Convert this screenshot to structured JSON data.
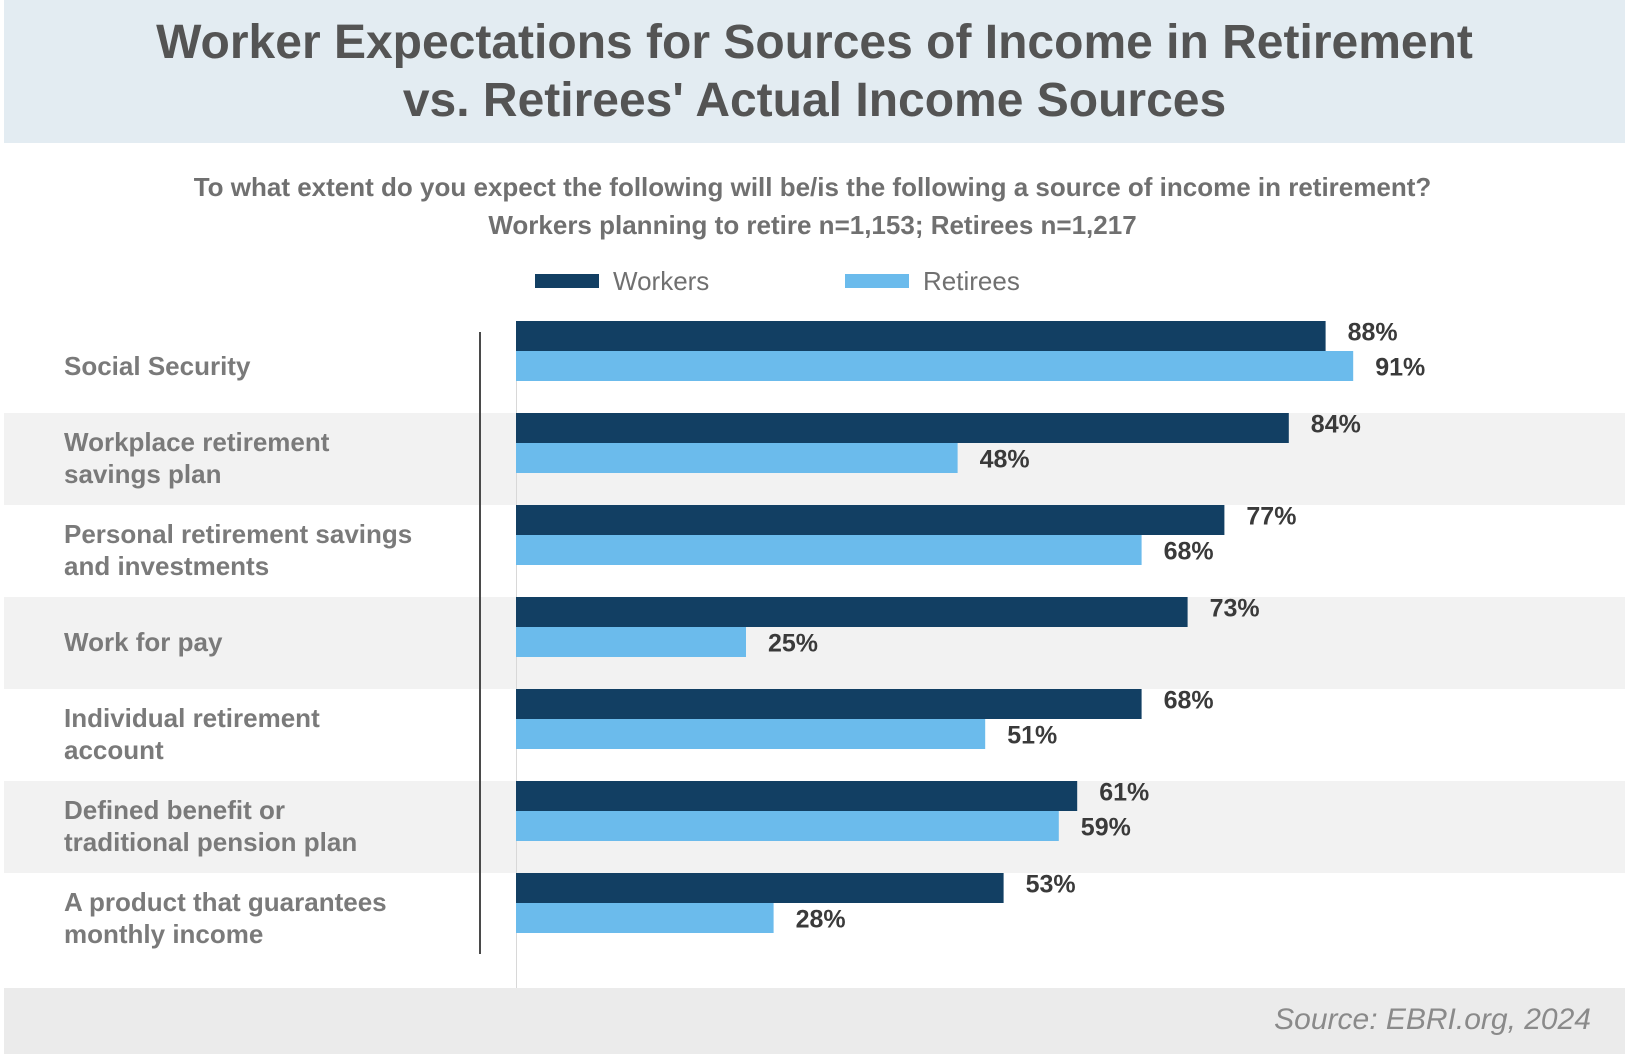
{
  "header": {
    "title_line1": "Worker Expectations for Sources of Income in Retirement",
    "title_line2": "vs. Retirees' Actual Income Sources"
  },
  "subtitle": {
    "line1": "To what extent do you expect the following will be/is the following a source of income in retirement?",
    "line2": "Workers planning to retire n=1,153; Retirees n=1,217"
  },
  "colors": {
    "workers": "#123f63",
    "retirees": "#6bbbec",
    "band": "#f2f2f2",
    "value_text": "#3a3a3a"
  },
  "chart_data": {
    "type": "bar",
    "orientation": "horizontal",
    "categories": [
      [
        "Social Security"
      ],
      [
        "Workplace retirement",
        "savings plan"
      ],
      [
        "Personal retirement savings",
        "and investments"
      ],
      [
        "Work for pay"
      ],
      [
        "Individual retirement",
        "account"
      ],
      [
        "Defined benefit or",
        "traditional pension plan"
      ],
      [
        "A product that guarantees",
        "monthly income"
      ]
    ],
    "series": [
      {
        "name": "Workers",
        "values": [
          88,
          84,
          77,
          73,
          68,
          61,
          53
        ],
        "labels": [
          "88%",
          "84%",
          "77%",
          "73%",
          "68%",
          "61%",
          "53%"
        ]
      },
      {
        "name": "Retirees",
        "values": [
          91,
          48,
          68,
          25,
          51,
          59,
          28
        ],
        "labels": [
          "91%",
          "48%",
          "68%",
          "25%",
          "51%",
          "59%",
          "28%"
        ]
      }
    ],
    "xlim": [
      0,
      100
    ],
    "unit": "%",
    "legend": "top-center",
    "grid": false
  },
  "footer": {
    "source": "Source: EBRI.org, 2024"
  }
}
